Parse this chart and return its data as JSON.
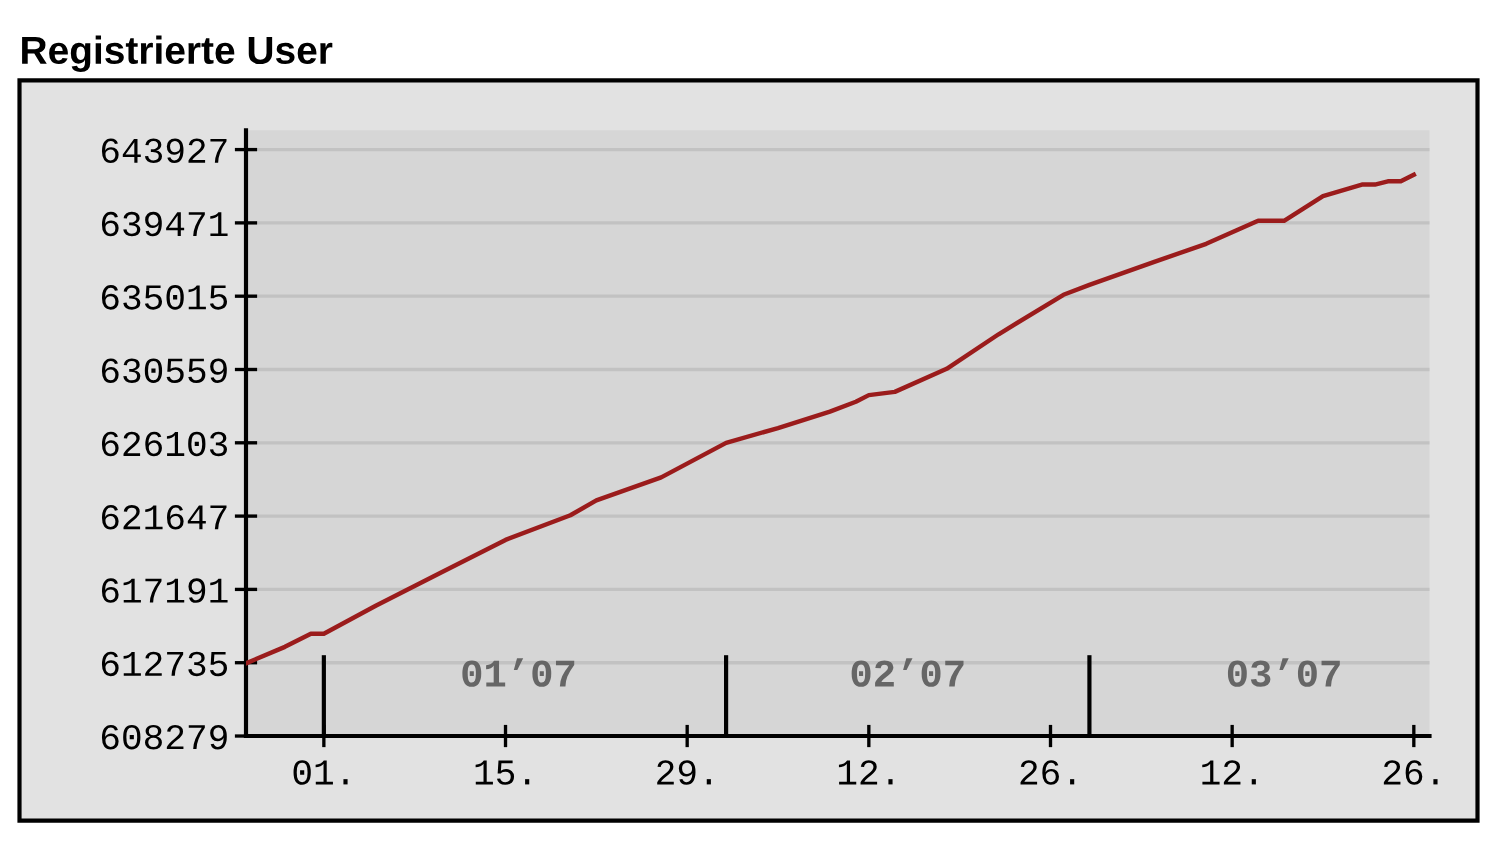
{
  "chart_data": {
    "type": "line",
    "title": "Registrierte User",
    "x": [
      "2006-12-26",
      "2006-12-29",
      "2006-12-31",
      "2007-01-01",
      "2007-01-05",
      "2007-01-10",
      "2007-01-15",
      "2007-01-20",
      "2007-01-22",
      "2007-01-27",
      "2007-02-01",
      "2007-02-05",
      "2007-02-09",
      "2007-02-11",
      "2007-02-12",
      "2007-02-14",
      "2007-02-18",
      "2007-02-22",
      "2007-02-27",
      "2007-03-01",
      "2007-03-06",
      "2007-03-10",
      "2007-03-14",
      "2007-03-16",
      "2007-03-19",
      "2007-03-22",
      "2007-03-23",
      "2007-03-24",
      "2007-03-25",
      "2007-03-26"
    ],
    "series": [
      {
        "color": "#9b1c1c",
        "values": [
          612700,
          613700,
          614500,
          614500,
          616200,
          618200,
          620200,
          621700,
          622600,
          624000,
          626100,
          627000,
          628000,
          628600,
          629000,
          629200,
          630600,
          632700,
          635100,
          635700,
          637100,
          638200,
          639600,
          639600,
          641100,
          641800,
          641800,
          642000,
          642000,
          642400
        ]
      }
    ],
    "xlim": [
      "2006-12-26",
      "2007-03-27T05:00"
    ],
    "xticks": [
      {
        "value": "2007-01-01",
        "label": "01."
      },
      {
        "value": "2007-01-15",
        "label": "15."
      },
      {
        "value": "2007-01-29",
        "label": "29."
      },
      {
        "value": "2007-02-12",
        "label": "12."
      },
      {
        "value": "2007-02-26",
        "label": "26."
      },
      {
        "value": "2007-03-12",
        "label": "12."
      },
      {
        "value": "2007-03-26",
        "label": "26."
      }
    ],
    "x2lim": [
      "2006-12-26",
      "2007-03-27T05:00"
    ],
    "x2ticks": [
      {
        "value": "2007-01-16",
        "label": "01’07"
      },
      {
        "value": "2007-02-15",
        "label": "02’07"
      },
      {
        "value": "2007-03-16",
        "label": "03’07"
      }
    ],
    "ylim": [
      608279,
      645100
    ],
    "yticks": [
      608279,
      612735,
      617191,
      621647,
      626103,
      630559,
      635015,
      639471,
      643927
    ],
    "ref_lines": [
      {
        "axis": "x",
        "value": "2007-01-01",
        "color": "#000000"
      },
      {
        "axis": "x",
        "value": "2007-02-01",
        "color": "#000000"
      },
      {
        "axis": "x",
        "value": "2007-03-01",
        "color": "#000000"
      }
    ],
    "grid": "y",
    "marker": "none",
    "line_style": "solid"
  }
}
